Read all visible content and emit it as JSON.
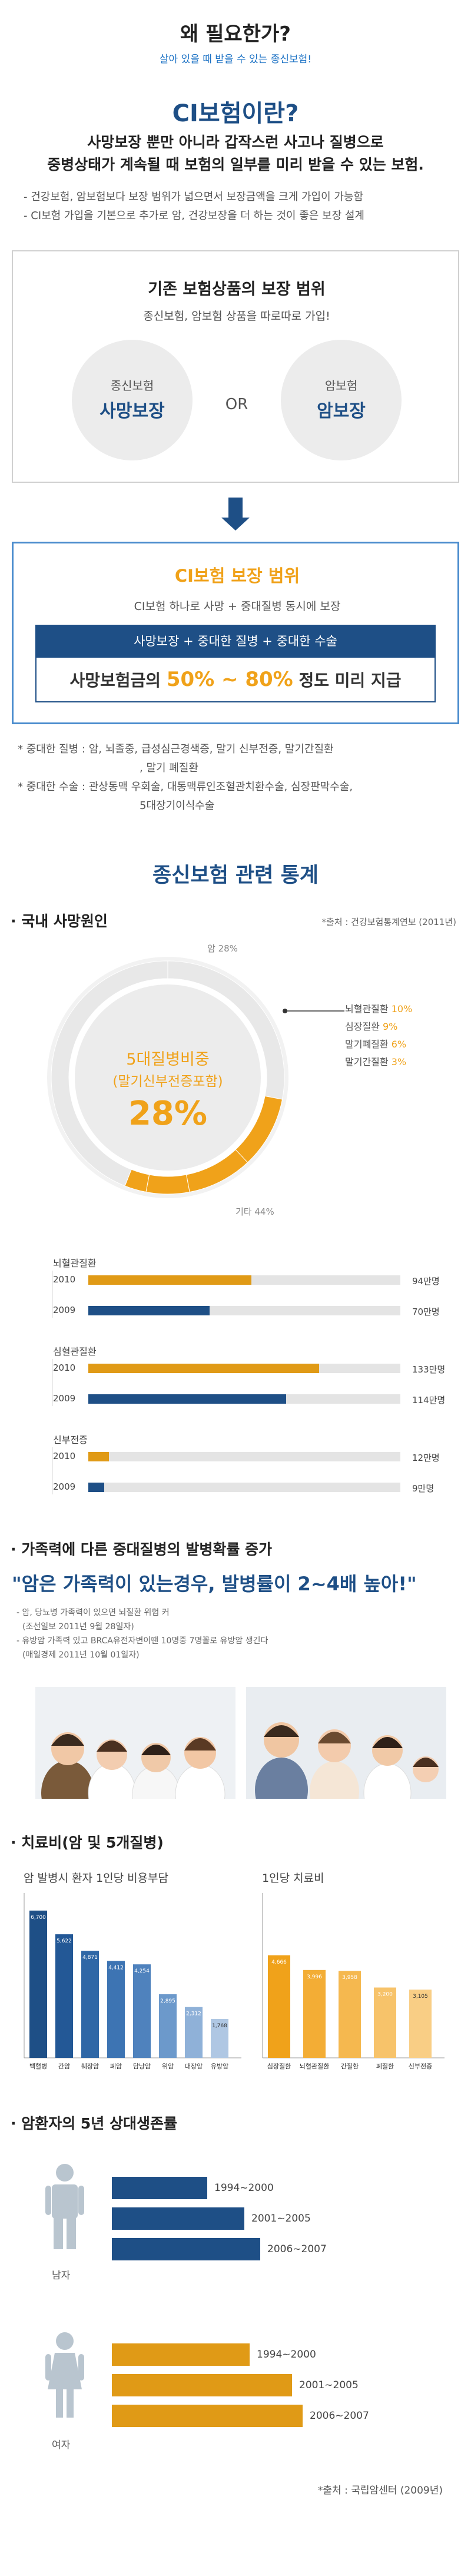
{
  "header": {
    "title": "왜 필요한가?",
    "subtitle": "살아 있을 때 받을 수 있는 종신보험!"
  },
  "ci_intro": {
    "title": "CI보험이란?",
    "desc_line1": "사망보장 뿐만 아니라 갑작스런 사고나 질병으로",
    "desc_line2": "중병상태가 계속될 때 보험의 일부를 미리 받을 수 있는 보험.",
    "bullets": [
      "- 건강보험, 암보험보다 보장 범위가 넓으면서 보장금액을 크게 가입이 가능함",
      "- CI보험 가입을 기본으로 추가로 암, 건강보장을 더 하는 것이 좋은 보장 설계"
    ]
  },
  "existing_box": {
    "title": "기존 보험상품의 보장 범위",
    "subtitle": "종신보험, 암보험 상품을 따로따로 가입!",
    "left_circle": {
      "line1": "종신보험",
      "line2": "사망보장"
    },
    "or_text": "OR",
    "right_circle": {
      "line1": "암보험",
      "line2": "암보장"
    }
  },
  "ci_box": {
    "title": "CI보험 보장 범위",
    "subtitle": "CI보험 하나로 사망 + 중대질병 동시에 보장",
    "bar_text": "사망보장 + 중대한 질병 + 중대한 수술",
    "payout_prefix": "사망보험금의",
    "payout_range": "50% ~ 80%",
    "payout_suffix": "정도 미리 지급"
  },
  "notes": {
    "disease_line1": "* 중대한 질병 : 암, 뇌졸중, 급성심근경색증, 말기 신부전증, 말기간질환",
    "disease_line2": ", 말기 폐질환",
    "surgery_line1": "* 중대한 수술 : 관상동맥 우회술, 대동맥류인조혈관치환수술, 심장판막수술,",
    "surgery_line2": "5대장기이식수술"
  },
  "stats": {
    "title": "종신보험 관련 통계",
    "death_cause": {
      "section_title": "· 국내 사망원인",
      "source": "*출처 : 건강보험통계연보 (2011년)",
      "center_line1": "5대질병비중",
      "center_line2": "(말기신부전증포함)",
      "center_pct": "28%",
      "label_cancer": "암 28%",
      "label_other": "기타 44%",
      "causes": [
        {
          "name": "뇌혈관질환",
          "pct": "10%"
        },
        {
          "name": "심장질환",
          "pct": "9%"
        },
        {
          "name": "말기폐질환",
          "pct": "6%"
        },
        {
          "name": "말기간질환",
          "pct": "3%"
        }
      ]
    },
    "patient_bars": {
      "groups": [
        {
          "name": "뇌혈관질환",
          "rows": [
            {
              "year": "2010",
              "label": "94만명"
            },
            {
              "year": "2009",
              "label": "70만명"
            }
          ]
        },
        {
          "name": "심혈관질환",
          "rows": [
            {
              "year": "2010",
              "label": "133만명"
            },
            {
              "year": "2009",
              "label": "114만명"
            }
          ]
        },
        {
          "name": "신부전증",
          "rows": [
            {
              "year": "2010",
              "label": "12만명"
            },
            {
              "year": "2009",
              "label": "9만명"
            }
          ]
        }
      ]
    },
    "family": {
      "section_title": "· 가족력에 다른 중대질병의 발병확률 증가",
      "quote": "\"암은 가족력이 있는경우, 발병률이 2~4배 높아!\"",
      "notes": [
        "- 암, 당뇨병 가족력이 있으면 뇌질환 위험 커",
        "(조선일보 2011년 9월 28일자)",
        "- 유방암 가족력 있고 BRCA유전자변이땐 10명중 7명꼴로 유방암 생긴다",
        "(매일경제 2011년 10월 01일자)"
      ]
    },
    "costs": {
      "section_title": "· 치료비(암 및 5개질병)",
      "left_title": "암 발병시 환자 1인당 비용부담",
      "right_title": "1인당 치료비"
    },
    "survival": {
      "section_title": "· 암환자의 5년 상대생존률",
      "male_label": "남자",
      "female_label": "여자",
      "source": "*출처 : 국립암센터 (2009년)"
    }
  },
  "chart_data": [
    {
      "type": "pie",
      "title": "국내 사망원인",
      "labels": [
        "암",
        "뇌혈관질환",
        "심장질환",
        "말기폐질환",
        "말기간질환",
        "기타"
      ],
      "values": [
        28,
        10,
        9,
        6,
        3,
        44
      ],
      "colors": [
        "#e8e8e8",
        "#f0a21a",
        "#f0a21a",
        "#f0a21a",
        "#f0a21a",
        "#e8e8e8"
      ]
    },
    {
      "type": "bar",
      "categories": [
        "뇌혈관질환 2010",
        "뇌혈관질환 2009",
        "심혈관질환 2010",
        "심혈관질환 2009",
        "신부전증 2010",
        "신부전증 2009"
      ],
      "values": [
        94,
        70,
        133,
        114,
        12,
        9
      ],
      "xlim": [
        0,
        180
      ],
      "colors": {
        "2010": "#e09a16",
        "2009": "#1e4f86"
      }
    },
    {
      "type": "bar",
      "title": "암 발병시 환자 1인당 비용부담",
      "categories": [
        "백혈병",
        "간암",
        "췌장암",
        "폐암",
        "담낭암",
        "위암",
        "대장암",
        "유방암"
      ],
      "values": [
        6700,
        5622,
        4871,
        4412,
        4254,
        2895,
        2312,
        1768
      ],
      "value_labels": [
        "6,700",
        "5,622",
        "4,871",
        "4,412",
        "4,254",
        "2,895",
        "2,312",
        "1,768"
      ],
      "ylim": [
        0,
        7500
      ],
      "colors": [
        "#1e4f86",
        "#235896",
        "#2f67a6",
        "#3d74b3",
        "#4f82bd",
        "#6c99cb",
        "#8fb1d8",
        "#afc7e3"
      ]
    },
    {
      "type": "bar",
      "title": "1인당 치료비",
      "categories": [
        "심장질환",
        "뇌혈관질환",
        "간질환",
        "폐질환",
        "신부전증"
      ],
      "values": [
        4666,
        3996,
        3958,
        3200,
        3105
      ],
      "value_labels": [
        "4,666",
        "3,996",
        "3,958",
        "3,200",
        "3,105"
      ],
      "ylim": [
        0,
        7500
      ],
      "colors": [
        "#f0a21a",
        "#f3ad35",
        "#f5b84f",
        "#f7c36a",
        "#f9ce85"
      ]
    },
    {
      "type": "bar",
      "title": "암환자의 5년 상대생존률",
      "series": [
        {
          "name": "남자",
          "categories": [
            "1994~2000",
            "2001~2005",
            "2006~2007"
          ],
          "values": [
            36,
            50,
            56
          ]
        },
        {
          "name": "여자",
          "categories": [
            "1994~2000",
            "2001~2005",
            "2006~2007"
          ],
          "values": [
            52,
            68,
            72
          ]
        }
      ],
      "xlim": [
        0,
        80
      ],
      "colors": {
        "남자": "#1e4f86",
        "여자": "#e09a16"
      }
    }
  ]
}
